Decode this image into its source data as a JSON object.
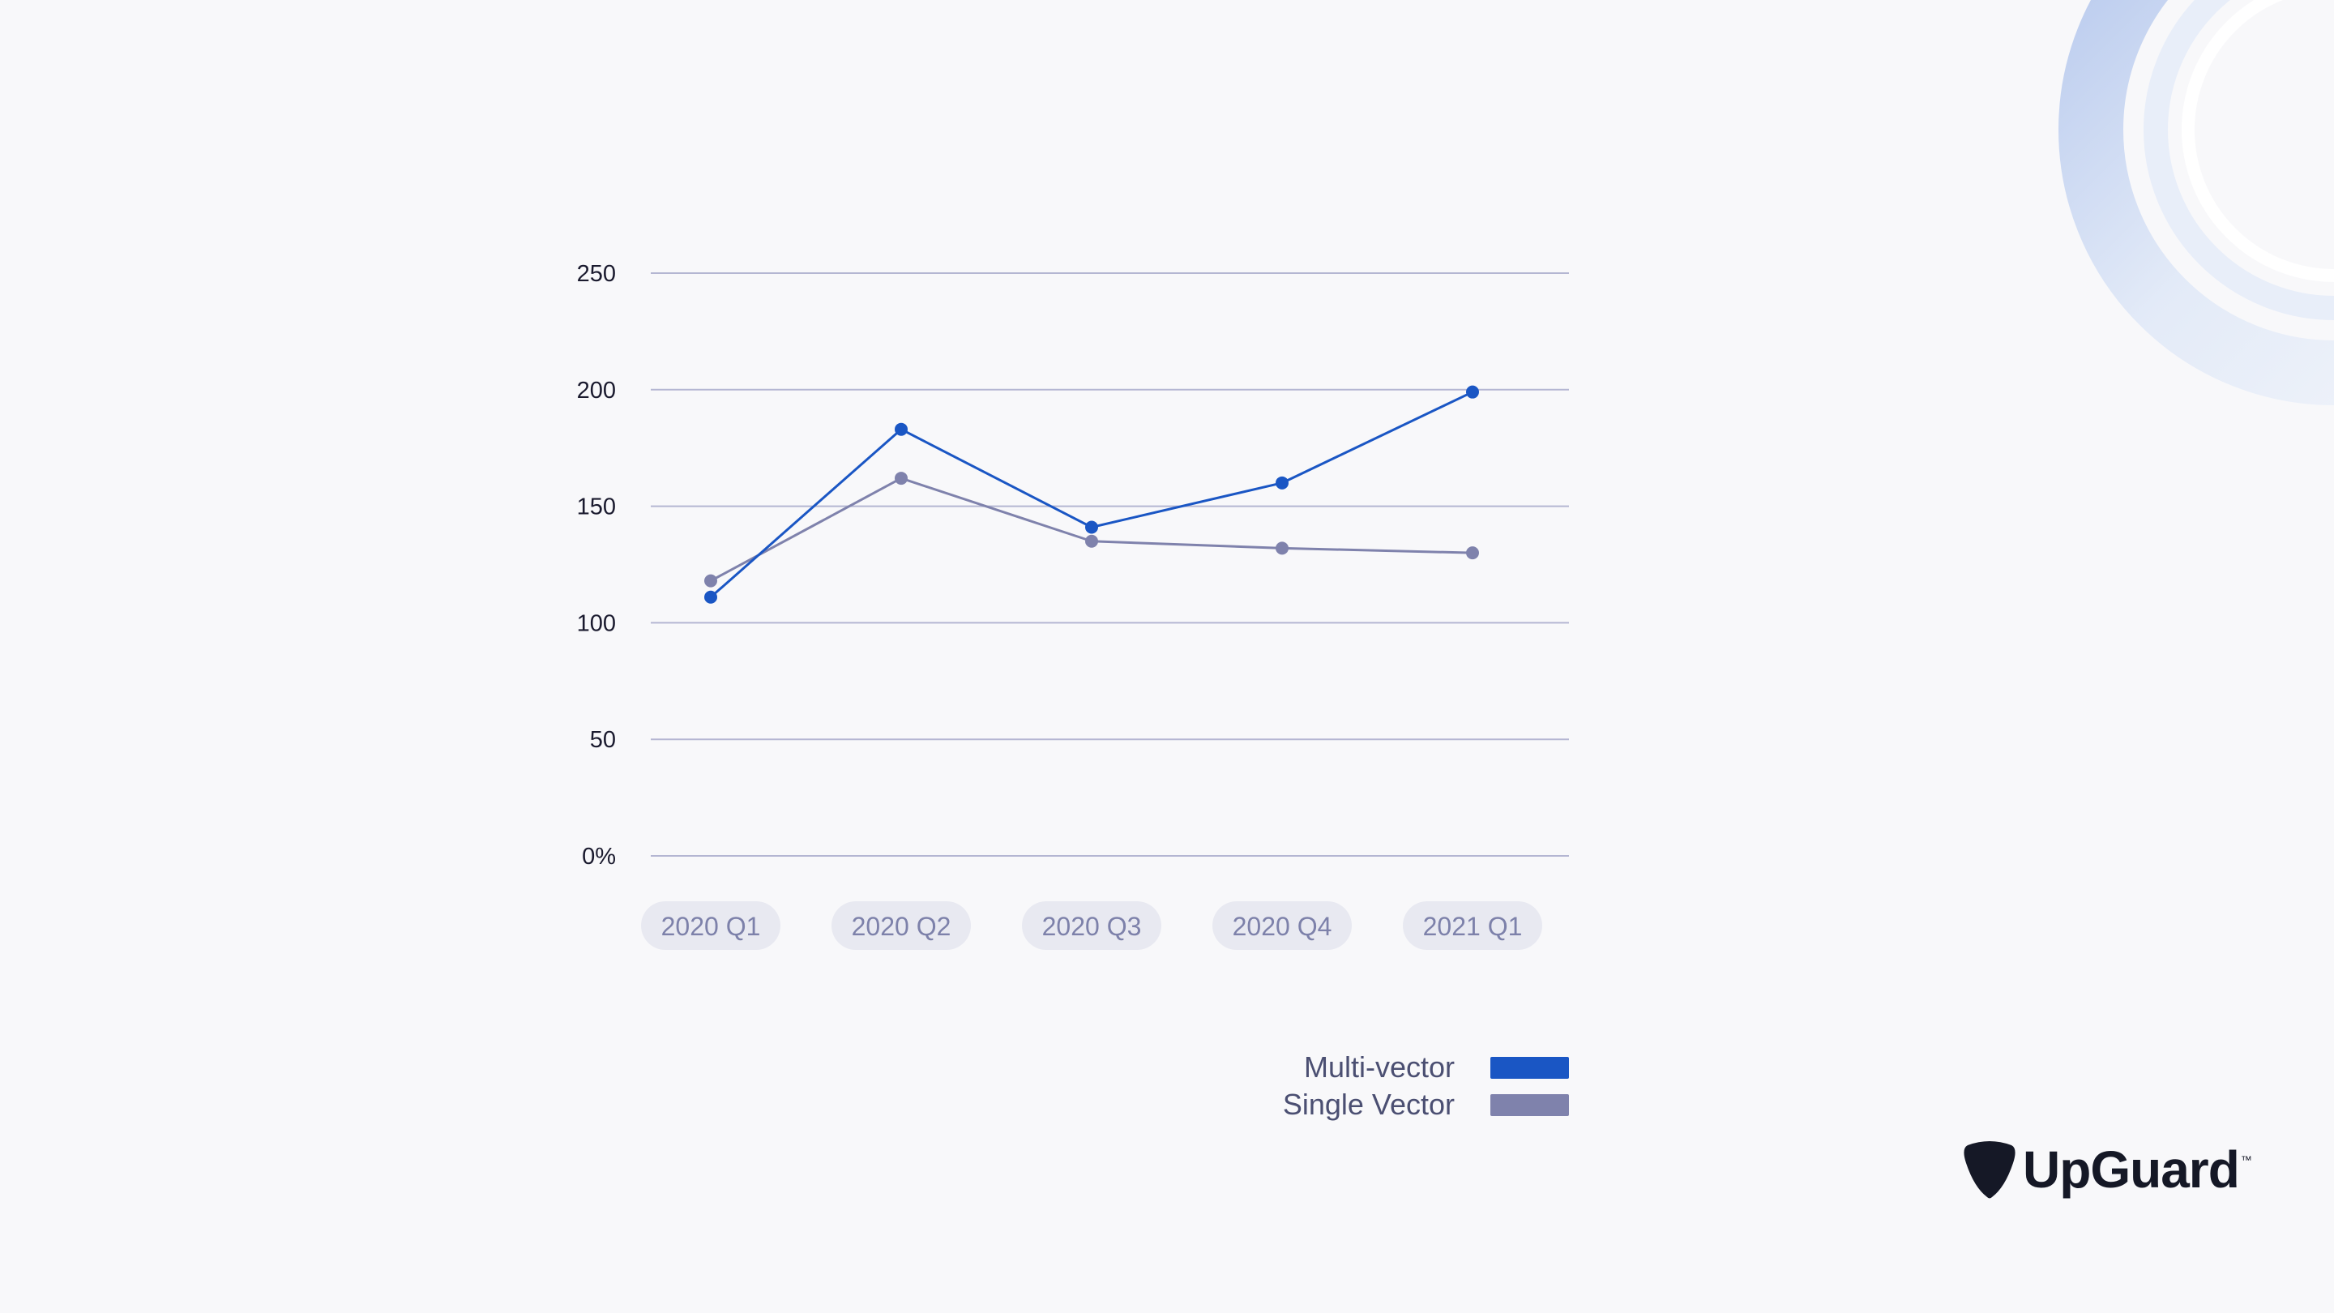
{
  "chart_data": {
    "type": "line",
    "categories": [
      "2020 Q1",
      "2020 Q2",
      "2020 Q3",
      "2020 Q4",
      "2021 Q1"
    ],
    "series": [
      {
        "name": "Multi-vector",
        "values": [
          111,
          183,
          141,
          160,
          199
        ],
        "color": "#1a56c4"
      },
      {
        "name": "Single Vector",
        "values": [
          118,
          162,
          135,
          132,
          130
        ],
        "color": "#7f82ac"
      }
    ],
    "yticks": [
      "0%",
      "50",
      "100",
      "150",
      "200",
      "250"
    ],
    "ylim": [
      0,
      250
    ],
    "grid": true,
    "legend_position": "bottom-right"
  },
  "brand": {
    "name": "UpGuard",
    "trademark": "™"
  }
}
